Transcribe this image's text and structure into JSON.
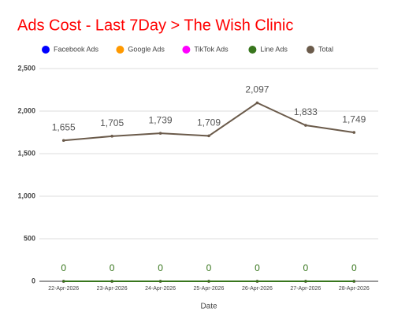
{
  "chart_data": {
    "type": "line",
    "title": "Ads Cost - Last 7Day > The Wish Clinic",
    "x_label": "Date",
    "categories": [
      "22-Apr-2026",
      "23-Apr-2026",
      "24-Apr-2026",
      "25-Apr-2026",
      "26-Apr-2026",
      "27-Apr-2026",
      "28-Apr-2026"
    ],
    "series": [
      {
        "name": "Facebook Ads",
        "color": "#0000ff",
        "values": [
          0,
          0,
          0,
          0,
          0,
          0,
          0
        ]
      },
      {
        "name": "Google Ads",
        "color": "#ff9900",
        "values": [
          0,
          0,
          0,
          0,
          0,
          0,
          0
        ]
      },
      {
        "name": "TikTok Ads",
        "color": "#ff00ff",
        "values": [
          0,
          0,
          0,
          0,
          0,
          0,
          0
        ]
      },
      {
        "name": "Line Ads",
        "color": "#38761d",
        "values": [
          0,
          0,
          0,
          0,
          0,
          0,
          0
        ],
        "data_labels": true
      },
      {
        "name": "Total",
        "color": "#6b5b4b",
        "values": [
          1655,
          1705,
          1739,
          1709,
          2097,
          1833,
          1749
        ],
        "value_labels": [
          "1,655",
          "1,705",
          "1,739",
          "1,709",
          "2,097",
          "1,833",
          "1,749"
        ],
        "data_labels": true
      }
    ],
    "ylim": [
      0,
      2500
    ],
    "yticks": [
      0,
      500,
      {
        "value": 1000,
        "label": "1,000"
      },
      {
        "value": 1500,
        "label": "1,500"
      },
      {
        "value": 2000,
        "label": "2,000"
      },
      {
        "value": 2500,
        "label": "2,500"
      }
    ],
    "grid": true,
    "legend": "top",
    "title_color": "#ff0000"
  }
}
